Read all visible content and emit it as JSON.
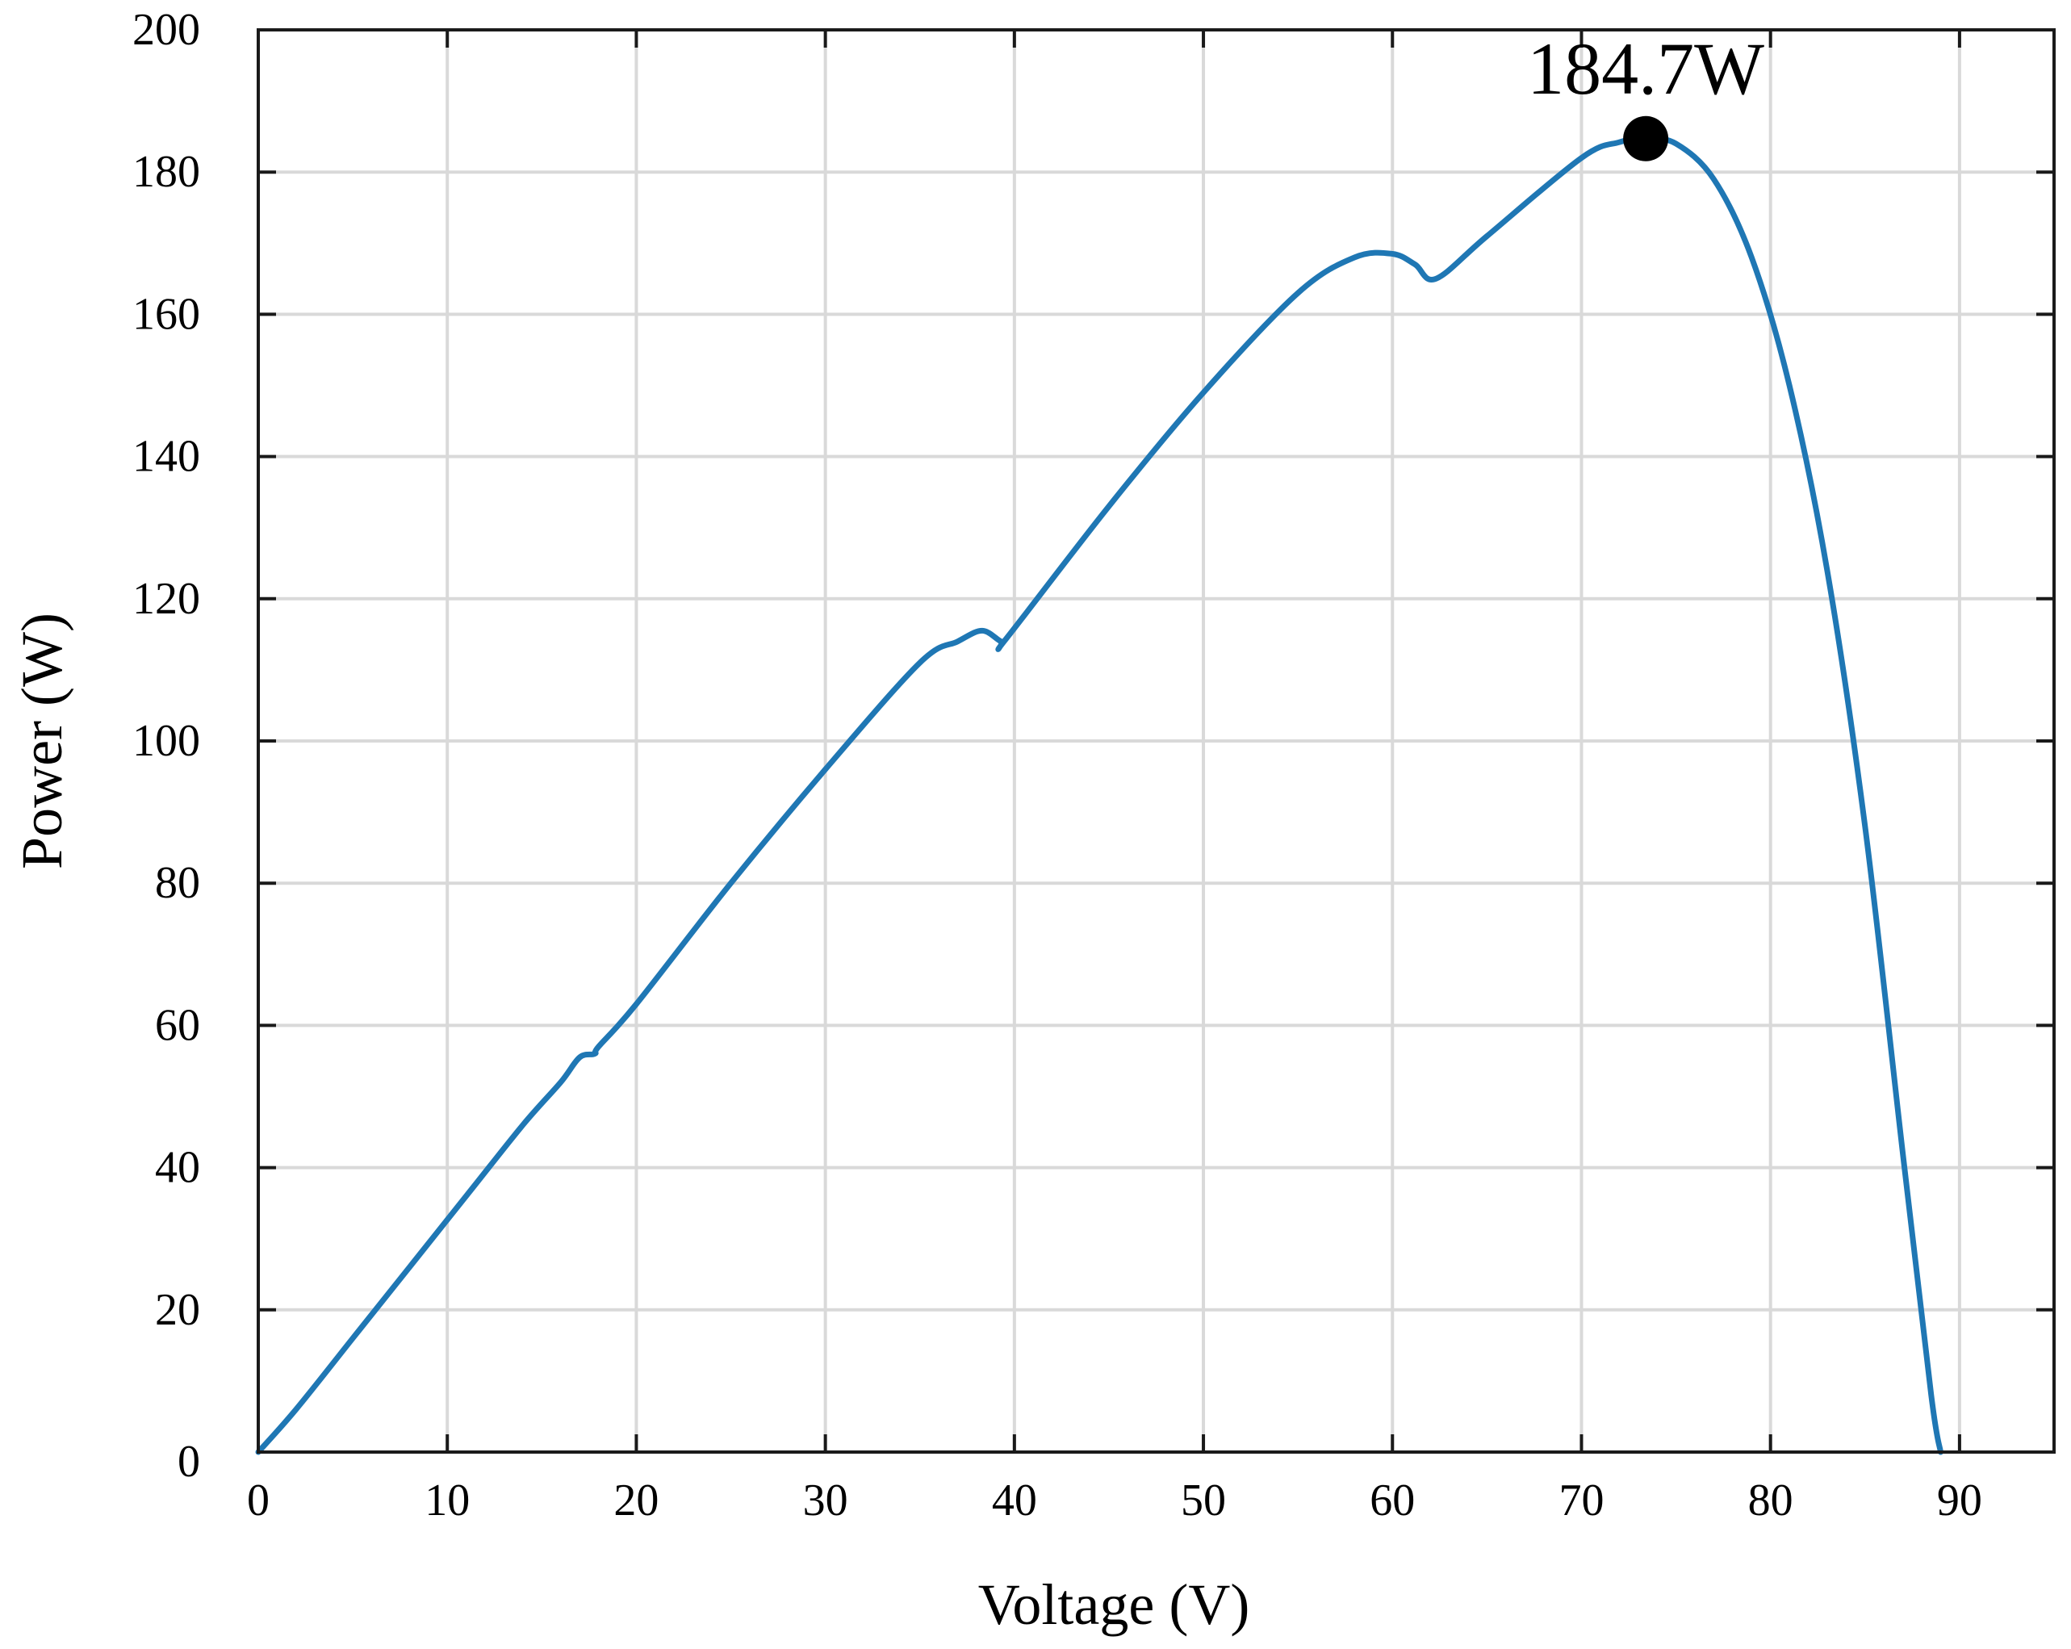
{
  "chart_data": {
    "type": "line",
    "title": "",
    "xlabel": "Voltage (V)",
    "ylabel": "Power (W)",
    "xlim": [
      0,
      95
    ],
    "ylim": [
      0,
      200
    ],
    "x_ticks": [
      0,
      10,
      20,
      30,
      40,
      50,
      60,
      70,
      80,
      90
    ],
    "y_ticks": [
      0,
      20,
      40,
      60,
      80,
      100,
      120,
      140,
      160,
      180,
      200
    ],
    "grid": true,
    "line_color": "#1f77b4",
    "series": [
      {
        "x": [
          0,
          2,
          5,
          8,
          11,
          14,
          16,
          17,
          17.8,
          18,
          20,
          25,
          30,
          35,
          37,
          38.3,
          39.3,
          39.6,
          45,
          50,
          55,
          58,
          60,
          61.2,
          62.3,
          65,
          70,
          72,
          73.4,
          75,
          77,
          79,
          81,
          83,
          85,
          87,
          88.5,
          89
        ],
        "y": [
          0,
          6,
          16,
          26,
          36,
          46,
          52,
          55.5,
          56,
          57,
          63,
          80,
          96,
          111,
          114,
          115.5,
          114,
          114.5,
          133,
          149,
          163,
          168,
          168.5,
          167,
          165,
          171,
          182,
          184.2,
          184.7,
          184,
          179,
          168,
          150,
          124,
          88,
          42,
          8,
          0
        ]
      }
    ],
    "annotations": [
      {
        "text": "184.7W",
        "x": 73.4,
        "y": 184.7,
        "marker": "filled-circle"
      }
    ]
  }
}
